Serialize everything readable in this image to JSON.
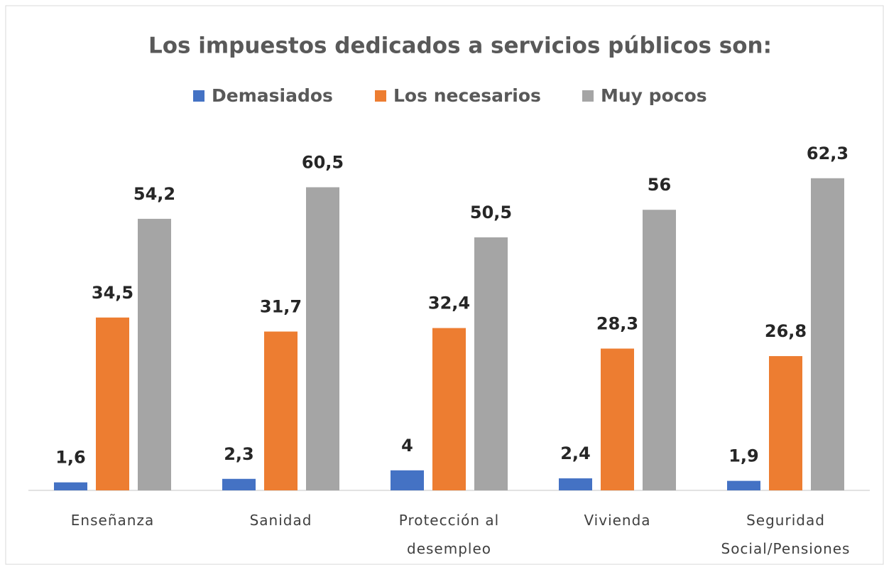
{
  "chart_data": {
    "type": "bar",
    "title": "Los impuestos dedicados a servicios públicos son:",
    "categories": [
      "Enseñanza",
      "Sanidad",
      "Protección al desempleo",
      "Vivienda",
      "Seguridad Social/Pensiones"
    ],
    "legend": "top",
    "series": [
      {
        "name": "Demasiados",
        "color": "#4472c4",
        "values": [
          1.6,
          2.3,
          4,
          2.4,
          1.9
        ],
        "value_labels": [
          "1,6",
          "2,3",
          "4",
          "2,4",
          "1,9"
        ]
      },
      {
        "name": "Los necesarios",
        "color": "#ed7d31",
        "values": [
          34.5,
          31.7,
          32.4,
          28.3,
          26.8
        ],
        "value_labels": [
          "34,5",
          "31,7",
          "32,4",
          "28,3",
          "26,8"
        ]
      },
      {
        "name": "Muy pocos",
        "color": "#a5a5a5",
        "values": [
          54.2,
          60.5,
          50.5,
          56,
          62.3
        ],
        "value_labels": [
          "54,2",
          "60,5",
          "50,5",
          "56",
          "62,3"
        ]
      }
    ]
  }
}
